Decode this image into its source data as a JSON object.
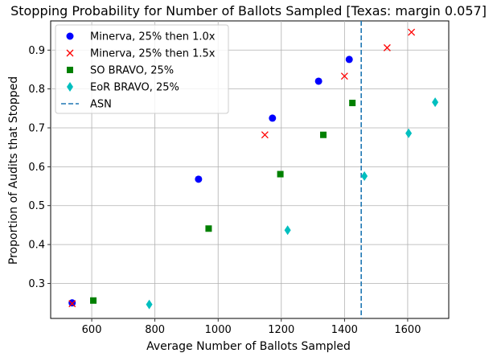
{
  "chart_data": {
    "type": "scatter",
    "title": "Stopping Probability for Number of Ballots Sampled [Texas: margin 0.057]",
    "xlabel": "Average Number of Ballots Sampled",
    "ylabel": "Proportion of Audits that Stopped",
    "xlim": [
      470,
      1730
    ],
    "ylim": [
      0.21,
      0.975
    ],
    "xticks": [
      600,
      800,
      1000,
      1200,
      1400,
      1600
    ],
    "yticks": [
      0.3,
      0.4,
      0.5,
      0.6,
      0.7,
      0.8,
      0.9
    ],
    "xtick_labels": [
      "600",
      "800",
      "1000",
      "1200",
      "1400",
      "1600"
    ],
    "ytick_labels": [
      "0.3",
      "0.4",
      "0.5",
      "0.6",
      "0.7",
      "0.8",
      "0.9"
    ],
    "grid": true,
    "legend_position": "top-left",
    "series": [
      {
        "name": "Minerva, 25% then 1.0x",
        "marker": "circle",
        "color": "#0000ff",
        "points": [
          [
            538,
            0.25
          ],
          [
            938,
            0.568
          ],
          [
            1172,
            0.725
          ],
          [
            1318,
            0.82
          ],
          [
            1415,
            0.876
          ]
        ]
      },
      {
        "name": "Minerva, 25% then 1.5x",
        "marker": "x",
        "color": "#ff0000",
        "points": [
          [
            538,
            0.248
          ],
          [
            1148,
            0.682
          ],
          [
            1400,
            0.833
          ],
          [
            1535,
            0.906
          ],
          [
            1612,
            0.946
          ]
        ]
      },
      {
        "name": "SO BRAVO, 25%",
        "marker": "square",
        "color": "#008000",
        "points": [
          [
            605,
            0.256
          ],
          [
            970,
            0.441
          ],
          [
            1197,
            0.581
          ],
          [
            1333,
            0.682
          ],
          [
            1425,
            0.764
          ]
        ]
      },
      {
        "name": "EoR BRAVO, 25%",
        "marker": "diamond",
        "color": "#00bfbf",
        "points": [
          [
            782,
            0.246
          ],
          [
            1220,
            0.437
          ],
          [
            1463,
            0.576
          ],
          [
            1603,
            0.686
          ],
          [
            1687,
            0.766
          ]
        ]
      }
    ],
    "reference_lines": [
      {
        "name": "ASN",
        "orientation": "vertical",
        "x": 1453,
        "color": "#1f77b4",
        "style": "dashed"
      }
    ]
  }
}
